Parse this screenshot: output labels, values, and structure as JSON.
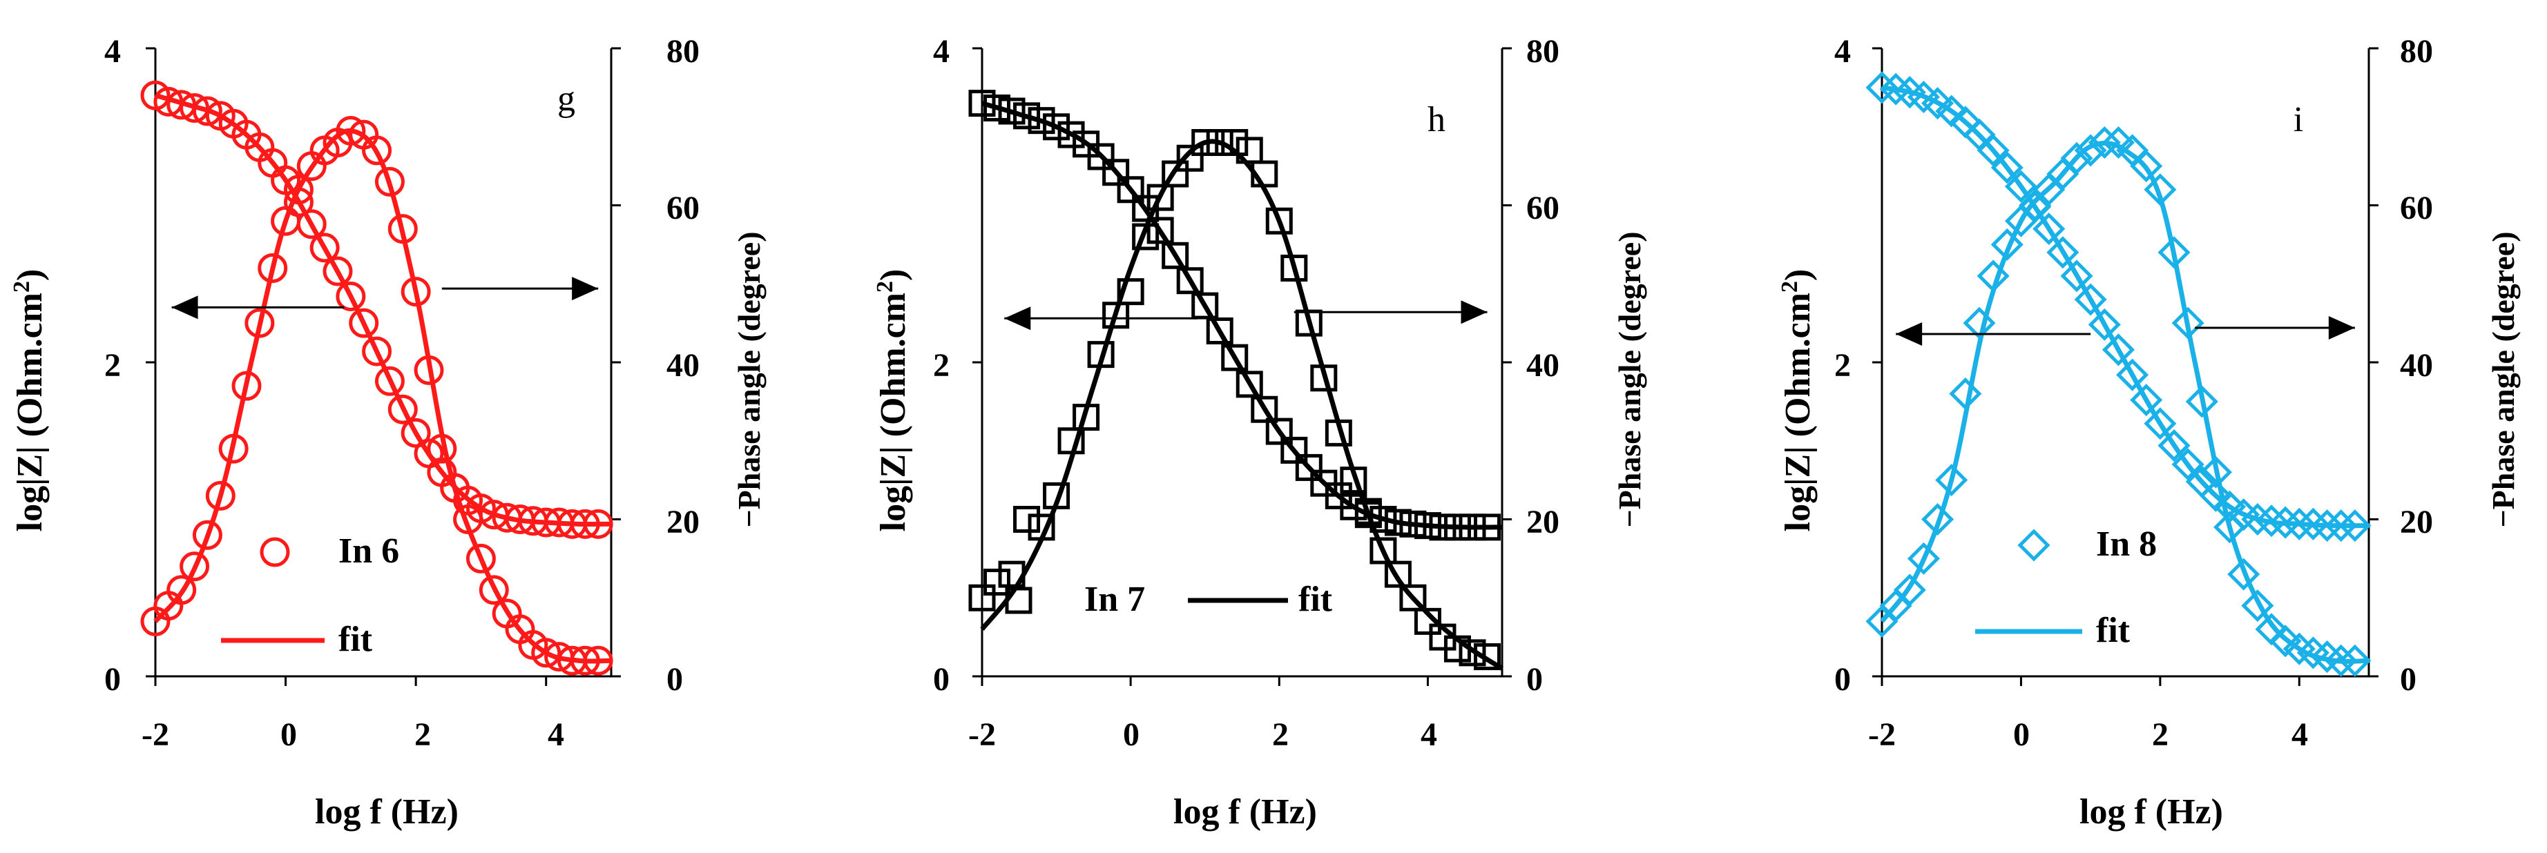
{
  "chart_data": [
    {
      "type": "line",
      "panel": "g",
      "title": "g",
      "color": "#ff1a1a",
      "marker": "circle",
      "xlabel": "log f (Hz)",
      "ylabel_left_main": "log|Z| (Ohm.cm",
      "ylabel_left_sup": "2",
      "ylabel_left_end": ")",
      "ylabel_right": "−Phase angle (degree)",
      "xlim": [
        -2,
        5
      ],
      "ylim_left": [
        0,
        4
      ],
      "ylim_right": [
        0,
        80
      ],
      "x_ticks": [
        "-2",
        "0",
        "2",
        "4"
      ],
      "y_left_ticks": [
        "0",
        "2",
        "4"
      ],
      "y_right_ticks": [
        "0",
        "20",
        "40",
        "60",
        "80"
      ],
      "legend": {
        "data_label": "In 6",
        "fit_label": "fit",
        "layout": "stacked",
        "position": "bottom-left"
      },
      "arrows": [
        {
          "direction": "left",
          "x_from": 0.9,
          "x_to": -1.75,
          "y_left": 2.35
        },
        {
          "direction": "right",
          "x_from": 2.4,
          "x_to": 4.8,
          "y_left": 2.47
        }
      ],
      "series": [
        {
          "name": "log|Z| data",
          "axis": "left",
          "kind": "markers",
          "x": [
            -2.0,
            -1.8,
            -1.6,
            -1.4,
            -1.2,
            -1.0,
            -0.8,
            -0.6,
            -0.4,
            -0.2,
            0.0,
            0.2,
            0.4,
            0.6,
            0.8,
            1.0,
            1.2,
            1.4,
            1.6,
            1.8,
            2.0,
            2.2,
            2.4,
            2.6,
            2.8,
            3.0,
            3.2,
            3.4,
            3.6,
            3.8,
            4.0,
            4.2,
            4.4,
            4.6,
            4.8
          ],
          "y": [
            3.7,
            3.66,
            3.64,
            3.62,
            3.6,
            3.57,
            3.52,
            3.45,
            3.37,
            3.27,
            3.16,
            3.02,
            2.88,
            2.73,
            2.58,
            2.42,
            2.25,
            2.07,
            1.88,
            1.7,
            1.55,
            1.42,
            1.3,
            1.2,
            1.12,
            1.07,
            1.03,
            1.01,
            1.0,
            0.99,
            0.98,
            0.98,
            0.97,
            0.97,
            0.97
          ]
        },
        {
          "name": "Phase data",
          "axis": "right",
          "kind": "markers",
          "x": [
            -2.0,
            -1.8,
            -1.6,
            -1.4,
            -1.2,
            -1.0,
            -0.8,
            -0.6,
            -0.4,
            -0.2,
            0.0,
            0.2,
            0.4,
            0.6,
            0.8,
            1.0,
            1.2,
            1.4,
            1.6,
            1.8,
            2.0,
            2.2,
            2.4,
            2.6,
            2.8,
            3.0,
            3.2,
            3.4,
            3.6,
            3.8,
            4.0,
            4.2,
            4.4,
            4.6,
            4.8
          ],
          "y": [
            7,
            9,
            11,
            14,
            18,
            23,
            29,
            37,
            45,
            52,
            58,
            62,
            65,
            67,
            68,
            69.5,
            69,
            67,
            63,
            57,
            49,
            39,
            29,
            24,
            20,
            15,
            11,
            8,
            6,
            4,
            3,
            2.5,
            2,
            2,
            2
          ]
        },
        {
          "name": "log|Z| fit",
          "axis": "left",
          "kind": "line",
          "x": [
            -2.0,
            -1.5,
            -1.0,
            -0.5,
            0.0,
            0.5,
            1.0,
            1.5,
            2.0,
            2.5,
            3.0,
            3.5,
            4.0,
            4.5,
            5.0
          ],
          "y": [
            3.7,
            3.64,
            3.57,
            3.41,
            3.16,
            2.8,
            2.42,
            1.98,
            1.55,
            1.25,
            1.07,
            1.0,
            0.98,
            0.97,
            0.97
          ]
        },
        {
          "name": "Phase fit",
          "axis": "right",
          "kind": "line",
          "x": [
            -2.0,
            -1.5,
            -1.0,
            -0.5,
            0.0,
            0.5,
            1.0,
            1.5,
            2.0,
            2.5,
            3.0,
            3.5,
            4.0,
            4.5,
            5.0
          ],
          "y": [
            7,
            12,
            23,
            41,
            58,
            66,
            69.5,
            65,
            49,
            27,
            15,
            7,
            3,
            2,
            2
          ]
        }
      ]
    },
    {
      "type": "line",
      "panel": "h",
      "title": "h",
      "color": "#000000",
      "marker": "square",
      "xlabel": "log f (Hz)",
      "ylabel_left_main": "log|Z| (Ohm.cm",
      "ylabel_left_sup": "2",
      "ylabel_left_end": ")",
      "ylabel_right": "−Phase angle (degree)",
      "xlim": [
        -2,
        5
      ],
      "ylim_left": [
        0,
        4
      ],
      "ylim_right": [
        0,
        80
      ],
      "x_ticks": [
        "-2",
        "0",
        "2",
        "4"
      ],
      "y_left_ticks": [
        "0",
        "2",
        "4"
      ],
      "y_right_ticks": [
        "0",
        "20",
        "40",
        "60",
        "80"
      ],
      "legend": {
        "data_label": "In 7",
        "fit_label": "fit",
        "layout": "inline",
        "position": "bottom-left"
      },
      "arrows": [
        {
          "direction": "left",
          "x_from": 0.9,
          "x_to": -1.7,
          "y_left": 2.28
        },
        {
          "direction": "right",
          "x_from": 2.2,
          "x_to": 4.8,
          "y_left": 2.32
        }
      ],
      "series": [
        {
          "name": "log|Z| data",
          "axis": "left",
          "kind": "markers",
          "x": [
            -2.0,
            -1.8,
            -1.6,
            -1.4,
            -1.2,
            -1.0,
            -0.8,
            -0.6,
            -0.4,
            -0.2,
            0.0,
            0.2,
            0.4,
            0.6,
            0.8,
            1.0,
            1.2,
            1.4,
            1.6,
            1.8,
            2.0,
            2.2,
            2.4,
            2.6,
            2.8,
            3.0,
            3.2,
            3.4,
            3.6,
            3.8,
            4.0,
            4.2,
            4.4,
            4.6,
            4.8
          ],
          "y": [
            3.65,
            3.62,
            3.6,
            3.57,
            3.54,
            3.5,
            3.45,
            3.39,
            3.31,
            3.21,
            3.1,
            2.98,
            2.84,
            2.68,
            2.52,
            2.36,
            2.2,
            2.03,
            1.86,
            1.7,
            1.56,
            1.44,
            1.33,
            1.23,
            1.15,
            1.08,
            1.03,
            1.0,
            0.98,
            0.97,
            0.96,
            0.95,
            0.95,
            0.95,
            0.95
          ]
        },
        {
          "name": "Phase data",
          "axis": "right",
          "kind": "markers",
          "x": [
            -2.0,
            -1.8,
            -1.6,
            -1.4,
            -1.2,
            -1.0,
            -0.8,
            -0.6,
            -0.4,
            -0.2,
            0.0,
            0.2,
            0.4,
            0.6,
            0.8,
            1.0,
            1.2,
            1.4,
            1.6,
            1.8,
            2.0,
            2.2,
            2.4,
            2.6,
            2.8,
            3.0,
            3.2,
            3.4,
            3.6,
            3.8,
            4.0,
            4.2,
            4.4,
            4.6,
            4.8
          ],
          "y": [
            10,
            12,
            13,
            20,
            19,
            23,
            30,
            33,
            41,
            46,
            49,
            56,
            61,
            64,
            66,
            68,
            68,
            68,
            67,
            64,
            58,
            52,
            45,
            38,
            31,
            25,
            21,
            16,
            13,
            10,
            7,
            5,
            3.5,
            3,
            2.5
          ]
        },
        {
          "name": "log|Z| fit",
          "axis": "left",
          "kind": "line",
          "x": [
            -2.0,
            -1.5,
            -1.0,
            -0.5,
            0.0,
            0.5,
            1.0,
            1.5,
            2.0,
            2.5,
            3.0,
            3.5,
            4.0,
            4.5,
            5.0
          ],
          "y": [
            3.65,
            3.58,
            3.5,
            3.36,
            3.1,
            2.76,
            2.36,
            1.95,
            1.56,
            1.28,
            1.08,
            0.99,
            0.96,
            0.95,
            0.95
          ]
        },
        {
          "name": "Phase fit",
          "axis": "right",
          "kind": "line",
          "x": [
            -2.0,
            -1.5,
            -1.0,
            -0.5,
            0.0,
            0.5,
            1.0,
            1.5,
            2.0,
            2.5,
            3.0,
            3.5,
            4.0,
            4.5,
            5.0
          ],
          "y": [
            6,
            12,
            22,
            37,
            52,
            63,
            68,
            66,
            58,
            42,
            26,
            14,
            8,
            4,
            1
          ]
        }
      ]
    },
    {
      "type": "line",
      "panel": "i",
      "title": "i",
      "color": "#1ab0e8",
      "marker": "diamond",
      "xlabel": "log f (Hz)",
      "ylabel_left_main": "log|Z| (Ohm.cm",
      "ylabel_left_sup": "2",
      "ylabel_left_end": ")",
      "ylabel_right": "−Phase angle (degree)",
      "xlim": [
        -2,
        5
      ],
      "ylim_left": [
        0,
        4
      ],
      "ylim_right": [
        0,
        80
      ],
      "x_ticks": [
        "-2",
        "0",
        "2",
        "4"
      ],
      "y_left_ticks": [
        "0",
        "2",
        "4"
      ],
      "y_right_ticks": [
        "0",
        "20",
        "40",
        "60",
        "80"
      ],
      "legend": {
        "data_label": "In 8",
        "fit_label": "fit",
        "layout": "stacked",
        "position": "bottom-left"
      },
      "arrows": [
        {
          "direction": "left",
          "x_from": 1.0,
          "x_to": -1.8,
          "y_left": 2.18
        },
        {
          "direction": "right",
          "x_from": 2.5,
          "x_to": 4.8,
          "y_left": 2.22
        }
      ],
      "series": [
        {
          "name": "log|Z| data",
          "axis": "left",
          "kind": "markers",
          "x": [
            -2.0,
            -1.8,
            -1.6,
            -1.4,
            -1.2,
            -1.0,
            -0.8,
            -0.6,
            -0.4,
            -0.2,
            0.0,
            0.2,
            0.4,
            0.6,
            0.8,
            1.0,
            1.2,
            1.4,
            1.6,
            1.8,
            2.0,
            2.2,
            2.4,
            2.6,
            2.8,
            3.0,
            3.2,
            3.4,
            3.6,
            3.8,
            4.0,
            4.2,
            4.4,
            4.6,
            4.8
          ],
          "y": [
            3.75,
            3.74,
            3.72,
            3.69,
            3.65,
            3.6,
            3.53,
            3.45,
            3.35,
            3.24,
            3.12,
            2.99,
            2.85,
            2.7,
            2.55,
            2.4,
            2.24,
            2.08,
            1.92,
            1.76,
            1.61,
            1.47,
            1.35,
            1.24,
            1.15,
            1.08,
            1.03,
            1.0,
            0.99,
            0.98,
            0.97,
            0.97,
            0.96,
            0.96,
            0.96
          ]
        },
        {
          "name": "Phase data",
          "axis": "right",
          "kind": "markers",
          "x": [
            -2.0,
            -1.8,
            -1.6,
            -1.4,
            -1.2,
            -1.0,
            -0.8,
            -0.6,
            -0.4,
            -0.2,
            0.0,
            0.2,
            0.4,
            0.6,
            0.8,
            1.0,
            1.2,
            1.4,
            1.6,
            1.8,
            2.0,
            2.2,
            2.4,
            2.6,
            2.8,
            3.0,
            3.2,
            3.4,
            3.6,
            3.8,
            4.0,
            4.2,
            4.4,
            4.6,
            4.8
          ],
          "y": [
            7,
            9,
            11,
            15,
            20,
            25,
            36,
            45,
            51,
            55,
            58,
            60,
            62,
            64,
            66,
            67,
            68,
            68,
            67,
            65,
            62,
            54,
            45,
            35,
            26,
            19,
            13,
            9,
            6,
            4.5,
            3.5,
            3,
            2.5,
            2,
            2
          ]
        },
        {
          "name": "log|Z| fit",
          "axis": "left",
          "kind": "line",
          "x": [
            -2.0,
            -1.5,
            -1.0,
            -0.5,
            0.0,
            0.5,
            1.0,
            1.5,
            2.0,
            2.5,
            3.0,
            3.5,
            4.0,
            4.5,
            5.0
          ],
          "y": [
            3.75,
            3.71,
            3.6,
            3.4,
            3.12,
            2.78,
            2.4,
            2.0,
            1.61,
            1.29,
            1.08,
            0.99,
            0.97,
            0.96,
            0.96
          ]
        },
        {
          "name": "Phase fit",
          "axis": "right",
          "kind": "line",
          "x": [
            -2.0,
            -1.5,
            -1.0,
            -0.5,
            0.0,
            0.5,
            1.0,
            1.5,
            2.0,
            2.5,
            3.0,
            3.5,
            4.0,
            4.5,
            5.0
          ],
          "y": [
            7,
            13,
            25,
            46,
            58,
            63,
            67.5,
            67,
            61,
            40,
            19,
            8,
            3.5,
            2,
            2
          ]
        }
      ]
    }
  ]
}
